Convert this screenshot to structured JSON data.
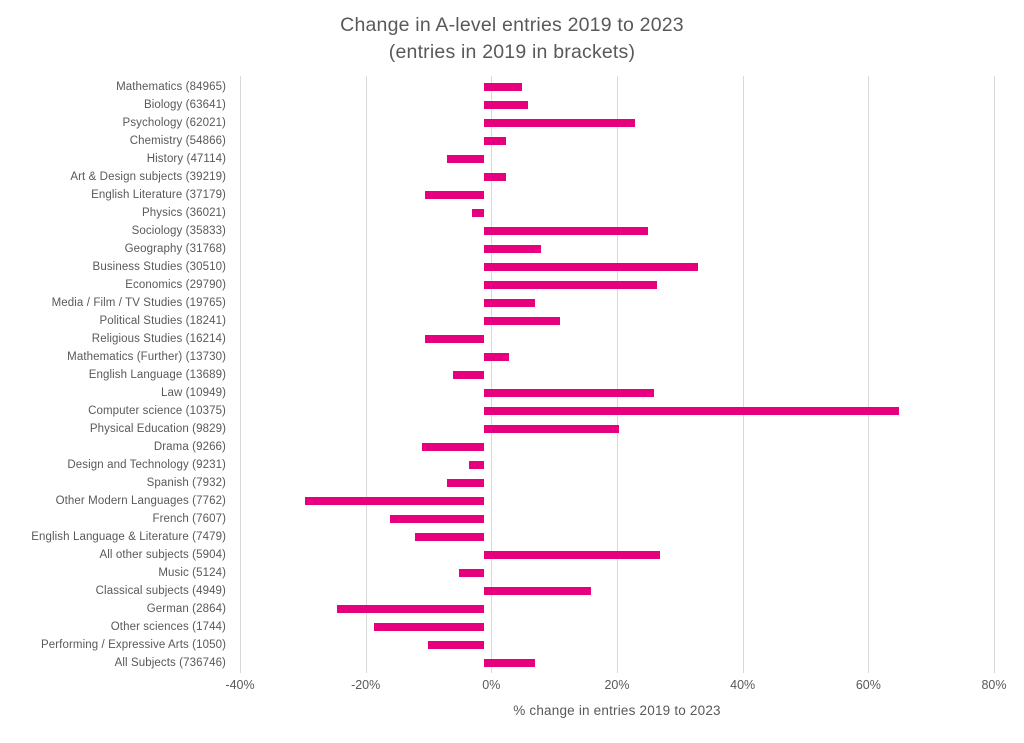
{
  "title": {
    "line1": "Change in A-level entries 2019 to 2023",
    "line2": "(entries in 2019 in brackets)"
  },
  "colors": {
    "bar": "#E6007E",
    "gridline": "#D9D9D9",
    "text": "#595959",
    "background": "#FFFFFF"
  },
  "chart_data": {
    "type": "bar",
    "orientation": "horizontal",
    "title": "Change in A-level entries 2019 to 2023 (entries in 2019 in brackets)",
    "xlabel": "% change in entries 2019 to 2023",
    "ylabel": "",
    "xlim": [
      -40,
      80
    ],
    "xticks": [
      -40,
      -20,
      0,
      20,
      40,
      60,
      80
    ],
    "xtick_labels": [
      "-40%",
      "-20%",
      "0%",
      "20%",
      "40%",
      "60%",
      "80%"
    ],
    "grid": "vertical",
    "legend": "none",
    "categories": [
      "Mathematics (84965)",
      "Biology (63641)",
      "Psychology (62021)",
      "Chemistry (54866)",
      "History (47114)",
      "Art & Design subjects (39219)",
      "English Literature (37179)",
      "Physics (36021)",
      "Sociology (35833)",
      "Geography (31768)",
      "Business Studies (30510)",
      "Economics (29790)",
      "Media / Film / TV Studies (19765)",
      "Political Studies (18241)",
      "Religious Studies (16214)",
      "Mathematics (Further) (13730)",
      "English Language (13689)",
      "Law (10949)",
      "Computer science (10375)",
      "Physical Education (9829)",
      "Drama (9266)",
      "Design and Technology (9231)",
      "Spanish (7932)",
      "Other Modern Languages (7762)",
      "French (7607)",
      "English Language & Literature (7479)",
      "All other subjects (5904)",
      "Music (5124)",
      "Classical subjects (4949)",
      "German (2864)",
      "Other sciences (1744)",
      "Performing / Expressive Arts (1050)",
      "All Subjects (736746)"
    ],
    "values": [
      6,
      7,
      24,
      3.5,
      -6,
      3.5,
      -9.5,
      -2,
      26,
      9,
      34,
      27.5,
      8,
      12,
      -9.5,
      4,
      -5,
      27,
      66,
      21.5,
      -10,
      -2.5,
      -6,
      -28.5,
      -15,
      -11,
      28,
      -4,
      17,
      -23.5,
      -17.5,
      -9,
      8
    ]
  }
}
